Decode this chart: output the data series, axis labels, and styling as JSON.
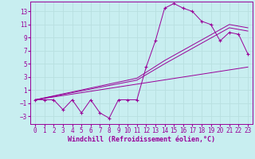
{
  "xlabel": "Windchill (Refroidissement éolien,°C)",
  "bg_color": "#c8eef0",
  "line_color": "#990099",
  "xlim": [
    -0.5,
    23.5
  ],
  "ylim": [
    -4.2,
    14.5
  ],
  "yticks": [
    -3,
    -1,
    1,
    3,
    5,
    7,
    9,
    11,
    13
  ],
  "xticks": [
    0,
    1,
    2,
    3,
    4,
    5,
    6,
    7,
    8,
    9,
    10,
    11,
    12,
    13,
    14,
    15,
    16,
    17,
    18,
    19,
    20,
    21,
    22,
    23
  ],
  "series1_x": [
    0,
    1,
    2,
    3,
    4,
    5,
    6,
    7,
    8,
    9,
    10,
    11,
    12,
    13,
    14,
    15,
    16,
    17,
    18,
    19,
    20,
    21,
    22,
    23
  ],
  "series1_y": [
    -0.5,
    -0.5,
    -0.5,
    -2.0,
    -0.5,
    -2.5,
    -0.5,
    -2.5,
    -3.3,
    -0.5,
    -0.5,
    -0.5,
    4.5,
    8.5,
    13.5,
    14.2,
    13.5,
    13.0,
    11.5,
    11.0,
    8.5,
    9.8,
    9.5,
    6.5
  ],
  "series2_x": [
    0,
    23
  ],
  "series2_y": [
    -0.5,
    4.5
  ],
  "series3_x": [
    0,
    11,
    14,
    21,
    23
  ],
  "series3_y": [
    -0.5,
    2.5,
    5.0,
    10.5,
    10.0
  ],
  "series4_x": [
    0,
    11,
    14,
    21,
    23
  ],
  "series4_y": [
    -0.5,
    2.8,
    5.5,
    11.0,
    10.5
  ],
  "grid_color": "#b8dfe0",
  "font_color": "#990099",
  "tick_fontsize": 5.5,
  "xlabel_fontsize": 6.0
}
